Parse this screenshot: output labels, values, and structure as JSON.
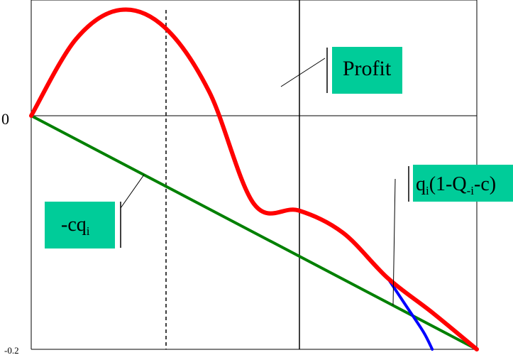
{
  "chart_data": {
    "type": "line",
    "title": "",
    "xlabel": "",
    "ylabel": "",
    "ylim": [
      -0.2,
      0.1
    ],
    "yticks": [
      {
        "value": 0,
        "label": "0"
      },
      {
        "value": -0.2,
        "label": "-0.2"
      }
    ],
    "grid": true,
    "annotations": [
      {
        "id": "profit",
        "text": "Profit",
        "box_color": "#00cc99"
      },
      {
        "id": "revenue",
        "base": "q",
        "base_sub": "i",
        "mid": "(1-Q",
        "mid_sub": "-i",
        "tail": "-c)",
        "box_color": "#00cc99"
      },
      {
        "id": "cost",
        "base": "-cq",
        "base_sub": "i",
        "box_color": "#00cc99"
      }
    ],
    "series": [
      {
        "id": "profit",
        "color": "#ff0000",
        "x": [
          0.0,
          0.1,
          0.2,
          0.3,
          0.4,
          0.5,
          0.6,
          0.7,
          0.8,
          0.9,
          1.0
        ],
        "values": [
          0.0,
          0.0654,
          0.0906,
          0.0755,
          0.0201,
          -0.0756,
          -0.0811,
          -0.1003,
          -0.139,
          -0.1685,
          -0.2
        ]
      },
      {
        "id": "revenue",
        "color": "#0000ff",
        "x": [
          0.8,
          0.84,
          0.88,
          0.9
        ],
        "values": [
          -0.139,
          -0.162,
          -0.185,
          -0.2
        ]
      },
      {
        "id": "cost",
        "color": "#008000",
        "x": [
          0.0,
          1.0
        ],
        "values": [
          0.0,
          -0.2
        ]
      }
    ]
  }
}
